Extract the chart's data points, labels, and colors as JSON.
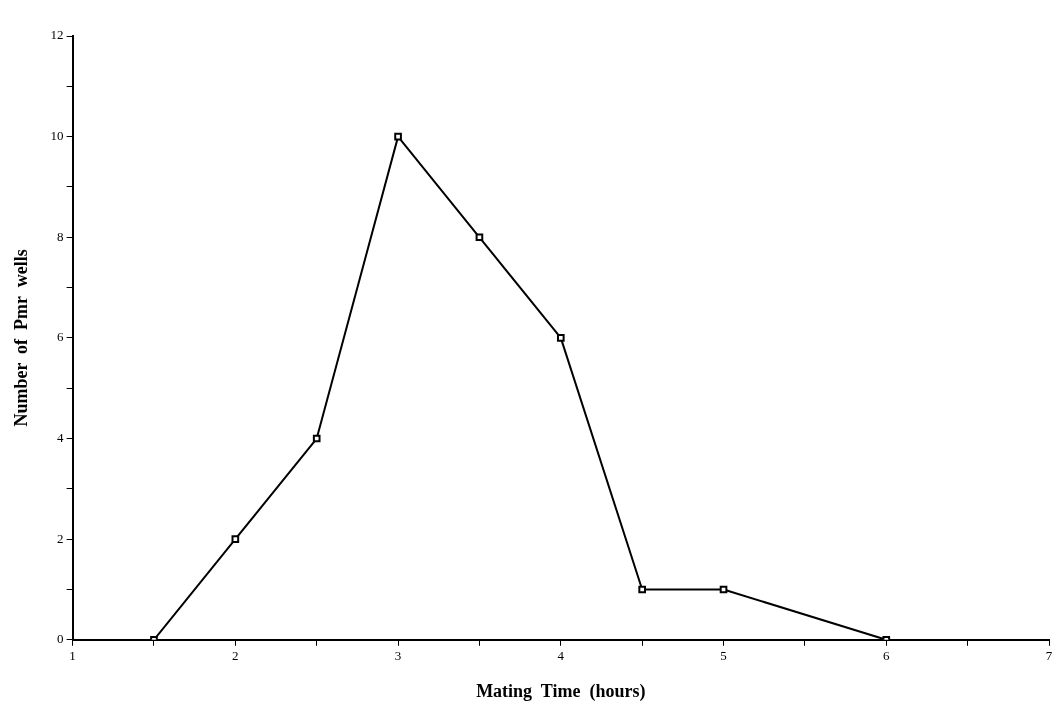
{
  "chart_data": {
    "type": "line",
    "xlabel": "Mating  Time  (hours)",
    "ylabel": "Number  of  Pmr  wells",
    "x": [
      1.5,
      2,
      2.5,
      3,
      3.5,
      4,
      4.5,
      5,
      6
    ],
    "series": [
      {
        "color": "#000000",
        "values": [
          0,
          2,
          4,
          10,
          8,
          6,
          1,
          1,
          0
        ]
      }
    ],
    "xlim": [
      1,
      7
    ],
    "xticks": [
      1,
      {
        "value": 1.5,
        "label": null
      },
      2,
      {
        "value": 2.5,
        "label": null
      },
      3,
      {
        "value": 3.5,
        "label": null
      },
      4,
      {
        "value": 4.5,
        "label": null
      },
      5,
      {
        "value": 5.5,
        "label": null
      },
      6,
      {
        "value": 6.5,
        "label": null
      },
      7
    ],
    "ylim": [
      0,
      12
    ],
    "yticks": [
      0,
      {
        "value": 1,
        "label": null
      },
      2,
      {
        "value": 3,
        "label": null
      },
      4,
      {
        "value": 5,
        "label": null
      },
      6,
      {
        "value": 7,
        "label": null
      },
      8,
      {
        "value": 9,
        "label": null
      },
      10,
      {
        "value": 11,
        "label": null
      },
      12
    ],
    "grid": false,
    "legend": false,
    "marker": "square",
    "line_style": "solid"
  }
}
